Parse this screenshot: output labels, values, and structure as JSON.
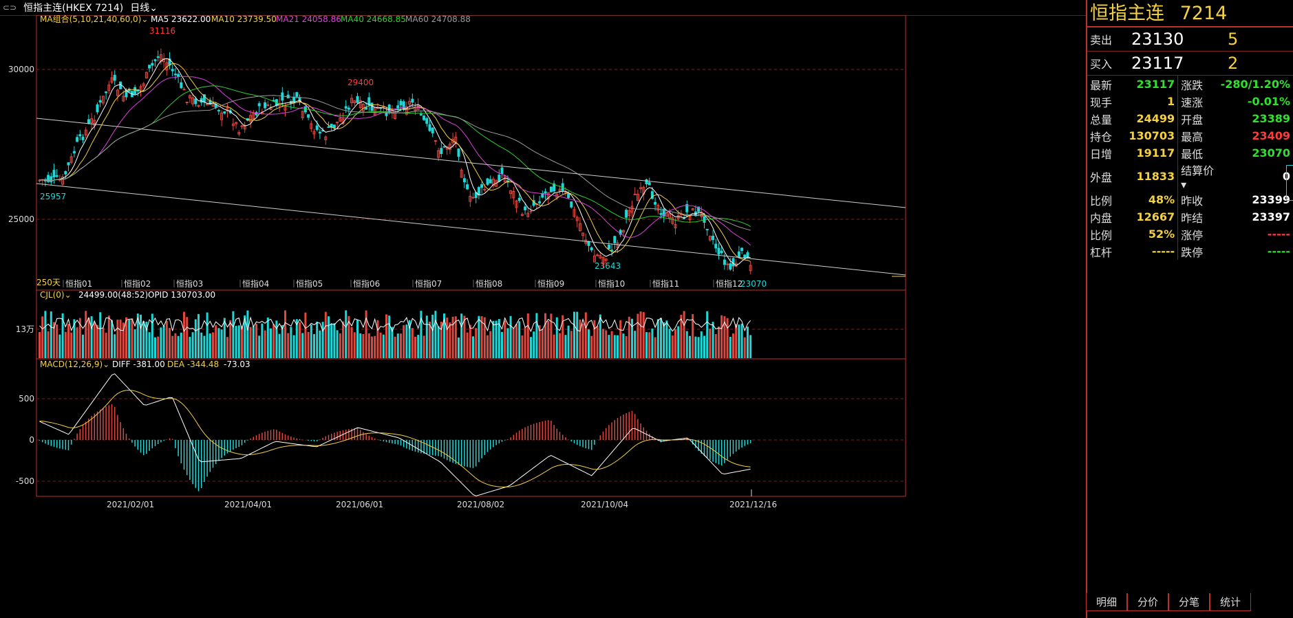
{
  "header": {
    "title": "恒指主连(HKEX 7214)",
    "period": "日线"
  },
  "indicator_bar": {
    "ma_label": "MA组合(5,10,21,40,60,0)",
    "ma5": "MA5 23622.00",
    "ma10": "MA10 23739.50",
    "ma21": "MA21 24058.86",
    "ma40": "MA40 24668.85",
    "ma60": "MA60 24708.88"
  },
  "volume_bar": {
    "label": "CJL(0)",
    "values": "24499.00(48:52)",
    "opid": "OPID 130703.00",
    "axis": "13万"
  },
  "macd_bar": {
    "label": "MACD(12,26,9)",
    "diff": "DIFF -381.00",
    "dea": "DEA -344.48",
    "macd": "-73.03"
  },
  "price_axis": [
    "30000",
    "25000"
  ],
  "macd_axis": [
    "500",
    "0",
    "-500"
  ],
  "annotations": {
    "high": "31116",
    "mid": "29400",
    "low1": "25957",
    "low2": "23643",
    "last": "23070",
    "days": "250天"
  },
  "month_labels": [
    "恒指01",
    "恒指02",
    "恒指03",
    "恒指04",
    "恒指05",
    "恒指06",
    "恒指07",
    "恒指08",
    "恒指09",
    "恒指10",
    "恒指11",
    "恒指12"
  ],
  "date_labels": [
    "2021/02/01",
    "2021/04/01",
    "2021/06/01",
    "2021/08/02",
    "2021/10/04",
    "2021/12/16"
  ],
  "side": {
    "title_name": "恒指主连",
    "title_code": "7214",
    "sell_label": "卖出",
    "sell_price": "23130",
    "sell_vol": "5",
    "buy_label": "买入",
    "buy_price": "23117",
    "buy_vol": "2",
    "rows": [
      {
        "k": "最新",
        "v": "23117",
        "vc": "#2fe02f",
        "k2": "涨跌",
        "v2": "-280/1.20%",
        "v2c": "#2fe02f"
      },
      {
        "k": "现手",
        "v": "1",
        "vc": "#f5d142",
        "k2": "速涨",
        "v2": "-0.01%",
        "v2c": "#2fe02f"
      },
      {
        "k": "总量",
        "v": "24499",
        "vc": "#f5d142",
        "k2": "开盘",
        "v2": "23389",
        "v2c": "#2fe02f"
      },
      {
        "k": "持仓",
        "v": "130703",
        "vc": "#f5d142",
        "k2": "最高",
        "v2": "23409",
        "v2c": "#ff3b3b"
      },
      {
        "k": "日增",
        "v": "19117",
        "vc": "#f5d142",
        "k2": "最低",
        "v2": "23070",
        "v2c": "#2fe02f"
      },
      {
        "k": "外盘",
        "v": "11833",
        "vc": "#f5d142",
        "k2": "结算价",
        "v2": "0",
        "v2c": "#ffffff"
      },
      {
        "k": "比例",
        "v": "48%",
        "vc": "#f5d142",
        "k2": "昨收",
        "v2": "23399",
        "v2c": "#ffffff"
      },
      {
        "k": "内盘",
        "v": "12667",
        "vc": "#f5d142",
        "k2": "昨结",
        "v2": "23397",
        "v2c": "#ffffff"
      },
      {
        "k": "比例",
        "v": "52%",
        "vc": "#f5d142",
        "k2": "涨停",
        "v2": "-----",
        "v2c": "#ff3b3b"
      },
      {
        "k": "杠杆",
        "v": "-----",
        "vc": "#f5d142",
        "k2": "跌停",
        "v2": "-----",
        "v2c": "#2fe02f"
      }
    ],
    "tabs": [
      "明细",
      "分价",
      "分笔",
      "统计"
    ]
  },
  "colors": {
    "up": "#e0473f",
    "down": "#1ed8d8",
    "ma5": "#ffffff",
    "ma10": "#f5d142",
    "ma21": "#e040e0",
    "ma40": "#2fd12f",
    "ma60": "#9a9a9a",
    "frame": "#c0302a"
  }
}
